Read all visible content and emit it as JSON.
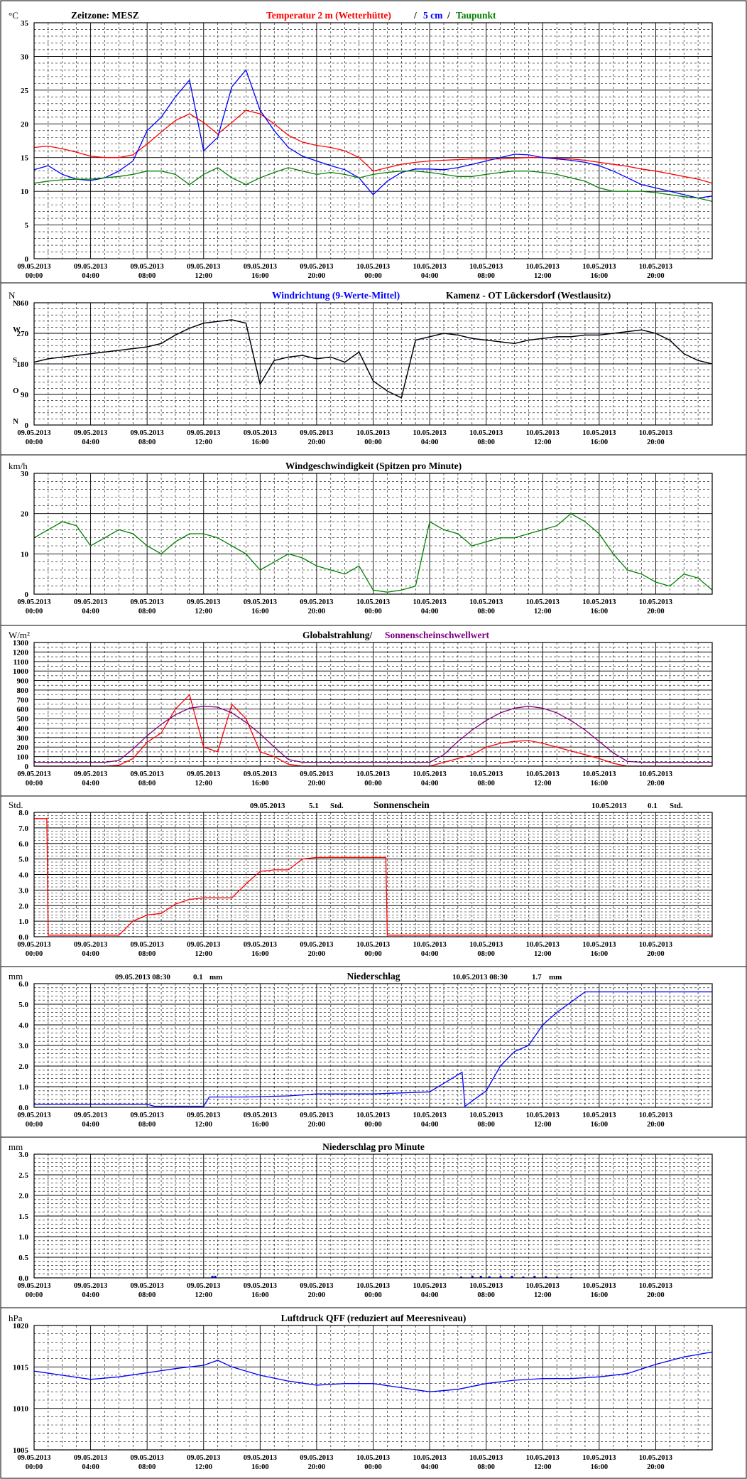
{
  "chart_data": [
    {
      "id": "temperature",
      "type": "line",
      "unit": "°C",
      "title_parts": [
        {
          "text": "Zeitzone: MESZ",
          "color": "#000000"
        },
        {
          "text": "Temperatur 2 m (Wetterhütte)",
          "color": "#ff0000"
        },
        {
          "text": "/",
          "color": "#000000"
        },
        {
          "text": "5 cm",
          "color": "#0000ff"
        },
        {
          "text": "/",
          "color": "#000000"
        },
        {
          "text": "Taupunkt",
          "color": "#008000"
        }
      ],
      "x": [
        0,
        1,
        2,
        3,
        4,
        5,
        6,
        7,
        8,
        9,
        10,
        11,
        12,
        13,
        14,
        15,
        16,
        17,
        18,
        19,
        20,
        21,
        22,
        23,
        24,
        25,
        26,
        27,
        28,
        29,
        30,
        31,
        32,
        33,
        34,
        35,
        36,
        37,
        38,
        39,
        40,
        41,
        42,
        43,
        44,
        45,
        46,
        47,
        48
      ],
      "ylim": [
        0,
        35
      ],
      "yticks": [
        0,
        5,
        10,
        15,
        20,
        25,
        30,
        35
      ],
      "series": [
        {
          "color": "#ff0000",
          "values": [
            16.5,
            16.7,
            16.3,
            15.8,
            15.2,
            15.0,
            15.0,
            15.4,
            17.0,
            18.8,
            20.5,
            21.5,
            20.2,
            18.5,
            20.2,
            22.0,
            21.5,
            20.0,
            18.3,
            17.3,
            16.8,
            16.5,
            16.0,
            15.0,
            13.0,
            13.5,
            14.0,
            14.3,
            14.5,
            14.6,
            14.7,
            14.8,
            14.8,
            14.8,
            14.9,
            15.0,
            15.0,
            14.9,
            14.8,
            14.6,
            14.3,
            14.0,
            13.7,
            13.3,
            13.0,
            12.6,
            12.2,
            11.8,
            11.2
          ]
        },
        {
          "color": "#0000ff",
          "values": [
            13.2,
            13.8,
            12.5,
            11.8,
            11.6,
            12.0,
            13.0,
            14.5,
            19.0,
            21.0,
            24.0,
            26.5,
            16.0,
            18.0,
            25.5,
            28.0,
            22.0,
            19.0,
            16.5,
            15.2,
            14.5,
            13.8,
            13.2,
            12.0,
            9.5,
            11.5,
            12.8,
            13.3,
            13.3,
            13.2,
            13.5,
            14.0,
            14.5,
            15.0,
            15.5,
            15.4,
            15.0,
            14.8,
            14.6,
            14.3,
            13.8,
            13.0,
            12.0,
            11.0,
            10.5,
            10.0,
            9.5,
            9.0,
            9.3
          ]
        },
        {
          "color": "#008000",
          "values": [
            11.2,
            11.5,
            11.7,
            11.8,
            11.8,
            12.0,
            12.2,
            12.5,
            13.0,
            13.0,
            12.5,
            11.0,
            12.5,
            13.5,
            12.0,
            11.0,
            12.0,
            12.8,
            13.5,
            13.0,
            12.5,
            12.8,
            12.5,
            12.0,
            12.5,
            12.8,
            13.0,
            13.0,
            12.8,
            12.5,
            12.2,
            12.2,
            12.5,
            12.8,
            13.0,
            13.0,
            12.8,
            12.5,
            12.0,
            11.5,
            10.5,
            10.0,
            10.0,
            10.0,
            9.8,
            9.5,
            9.2,
            9.0,
            8.5
          ]
        }
      ]
    },
    {
      "id": "winddir",
      "type": "line",
      "unit": "N",
      "title_parts": [
        {
          "text": "Windrichtung (9-Werte-Mittel)",
          "color": "#0000ff"
        },
        {
          "text": "Kamenz - OT Lückersdorf (Westlausitz)",
          "color": "#000000"
        }
      ],
      "y_compass_labels": [
        "N",
        "W",
        "S",
        "O",
        "N"
      ],
      "x": [
        0,
        1,
        2,
        3,
        4,
        5,
        6,
        7,
        8,
        9,
        10,
        11,
        12,
        13,
        14,
        15,
        16,
        17,
        18,
        19,
        20,
        21,
        22,
        23,
        24,
        25,
        26,
        27,
        28,
        29,
        30,
        31,
        32,
        33,
        34,
        35,
        36,
        37,
        38,
        39,
        40,
        41,
        42,
        43,
        44,
        45,
        46,
        47,
        48
      ],
      "ylim": [
        0,
        360
      ],
      "yticks": [
        0,
        90,
        180,
        270,
        360
      ],
      "series": [
        {
          "color": "#3c78ff",
          "values": [
            185,
            195,
            200,
            205,
            210,
            215,
            220,
            225,
            230,
            240,
            265,
            285,
            300,
            305,
            310,
            300,
            120,
            190,
            200,
            205,
            195,
            200,
            185,
            215,
            130,
            100,
            80,
            250,
            260,
            270,
            265,
            255,
            250,
            245,
            240,
            250,
            255,
            260,
            260,
            265,
            265,
            270,
            275,
            280,
            270,
            250,
            210,
            190,
            180
          ]
        },
        {
          "color": "#000000",
          "values": [
            185,
            195,
            200,
            205,
            210,
            215,
            220,
            225,
            230,
            240,
            265,
            285,
            300,
            305,
            310,
            300,
            120,
            190,
            200,
            205,
            195,
            200,
            185,
            215,
            130,
            100,
            80,
            250,
            260,
            270,
            265,
            255,
            250,
            245,
            240,
            250,
            255,
            260,
            260,
            265,
            265,
            270,
            275,
            280,
            270,
            250,
            210,
            190,
            180
          ]
        }
      ]
    },
    {
      "id": "windspeed",
      "type": "line",
      "unit": "km/h",
      "title_parts": [
        {
          "text": "Windgeschwindigkeit (Spitzen pro Minute)",
          "color": "#000000"
        }
      ],
      "x": [
        0,
        1,
        2,
        3,
        4,
        5,
        6,
        7,
        8,
        9,
        10,
        11,
        12,
        13,
        14,
        15,
        16,
        17,
        18,
        19,
        20,
        21,
        22,
        23,
        24,
        25,
        26,
        27,
        28,
        29,
        30,
        31,
        32,
        33,
        34,
        35,
        36,
        37,
        38,
        39,
        40,
        41,
        42,
        43,
        44,
        45,
        46,
        47,
        48
      ],
      "ylim": [
        0,
        30
      ],
      "yticks": [
        0,
        10,
        20,
        30
      ],
      "series": [
        {
          "color": "#008000",
          "values": [
            14,
            16,
            18,
            17,
            12,
            14,
            16,
            15,
            12,
            10,
            13,
            15,
            15,
            14,
            12,
            10,
            6,
            8,
            10,
            9,
            7,
            6,
            5,
            7,
            1,
            0.5,
            1,
            2,
            18,
            16,
            15,
            12,
            13,
            14,
            14,
            15,
            16,
            17,
            20,
            18,
            15,
            10,
            6,
            5,
            3,
            2,
            5,
            4,
            1
          ]
        }
      ]
    },
    {
      "id": "radiation",
      "type": "line",
      "unit": "W/m²",
      "title_parts": [
        {
          "text": "Globalstrahlung/",
          "color": "#000000"
        },
        {
          "text": "Sonnenscheinschwellwert",
          "color": "#800080"
        }
      ],
      "x": [
        0,
        1,
        2,
        3,
        4,
        5,
        6,
        7,
        8,
        9,
        10,
        11,
        12,
        13,
        14,
        15,
        16,
        17,
        18,
        19,
        20,
        21,
        22,
        23,
        24,
        25,
        26,
        27,
        28,
        29,
        30,
        31,
        32,
        33,
        34,
        35,
        36,
        37,
        38,
        39,
        40,
        41,
        42,
        43,
        44,
        45,
        46,
        47,
        48
      ],
      "ylim": [
        0,
        1300
      ],
      "yticks": [
        0,
        100,
        200,
        300,
        400,
        500,
        600,
        700,
        800,
        900,
        1000,
        1100,
        1200,
        1300
      ],
      "series": [
        {
          "color": "#ff0000",
          "values": [
            0,
            0,
            0,
            0,
            0,
            0,
            10,
            80,
            250,
            350,
            600,
            750,
            200,
            150,
            650,
            500,
            150,
            100,
            20,
            0,
            0,
            0,
            0,
            0,
            0,
            0,
            0,
            0,
            0,
            40,
            80,
            120,
            200,
            240,
            260,
            270,
            240,
            200,
            160,
            120,
            80,
            30,
            0,
            0,
            0,
            0,
            0,
            0,
            0
          ]
        },
        {
          "color": "#800080",
          "values": [
            40,
            40,
            40,
            40,
            40,
            40,
            60,
            180,
            320,
            440,
            540,
            610,
            630,
            620,
            560,
            460,
            340,
            200,
            70,
            40,
            40,
            40,
            40,
            40,
            40,
            40,
            40,
            40,
            40,
            120,
            260,
            380,
            480,
            560,
            610,
            630,
            610,
            560,
            480,
            380,
            260,
            140,
            50,
            40,
            40,
            40,
            40,
            40,
            40
          ]
        }
      ]
    },
    {
      "id": "sunshine",
      "type": "line",
      "unit": "Std.",
      "title_parts": [
        {
          "text": "09.05.2013",
          "color": "#000000"
        },
        {
          "text": "5.1",
          "color": "#000000"
        },
        {
          "text": "Std.",
          "color": "#000000"
        },
        {
          "text": "Sonnenschein",
          "color": "#000000"
        },
        {
          "text": "10.05.2013",
          "color": "#000000"
        },
        {
          "text": "0.1",
          "color": "#000000"
        },
        {
          "text": "Std.",
          "color": "#000000"
        }
      ],
      "x": [
        0,
        0.9,
        1,
        6,
        7,
        8,
        9,
        10,
        11,
        12,
        13,
        14,
        15,
        16,
        17,
        18,
        19,
        20,
        21,
        22,
        23,
        24.9,
        25,
        26,
        27,
        28,
        29,
        30,
        31,
        32,
        33,
        34,
        35,
        36,
        37,
        38,
        39,
        40,
        41,
        42,
        43,
        44,
        45,
        46,
        47,
        48
      ],
      "ylim": [
        0,
        8
      ],
      "yticks": [
        0,
        1,
        2,
        3,
        4,
        5,
        6,
        7,
        8
      ],
      "series": [
        {
          "color": "#ff0000",
          "values": [
            7.6,
            7.6,
            0.1,
            0.1,
            1.0,
            1.4,
            1.5,
            2.1,
            2.4,
            2.5,
            2.5,
            2.5,
            3.4,
            4.2,
            4.3,
            4.3,
            5.0,
            5.1,
            5.1,
            5.1,
            5.1,
            5.1,
            0.1,
            0.1,
            0.1,
            0.1,
            0.1,
            0.1,
            0.1,
            0.1,
            0.1,
            0.1,
            0.1,
            0.1,
            0.1,
            0.1,
            0.1,
            0.1,
            0.1,
            0.1,
            0.1,
            0.1,
            0.1,
            0.1,
            0.1,
            0.1
          ]
        }
      ]
    },
    {
      "id": "precip",
      "type": "line",
      "unit": "mm",
      "title_parts": [
        {
          "text": "09.05.2013 08:30",
          "color": "#000000"
        },
        {
          "text": "0.1",
          "color": "#000000"
        },
        {
          "text": "mm",
          "color": "#000000"
        },
        {
          "text": "Niederschlag",
          "color": "#000000"
        },
        {
          "text": "10.05.2013 08:30",
          "color": "#000000"
        },
        {
          "text": "1.7",
          "color": "#000000"
        },
        {
          "text": "mm",
          "color": "#000000"
        }
      ],
      "x": [
        0,
        8,
        8.5,
        12,
        12.4,
        15,
        18,
        20,
        24,
        28,
        30.3,
        30.5,
        32,
        33,
        34,
        35,
        36,
        37,
        38,
        39,
        40,
        44,
        48
      ],
      "ylim": [
        0,
        6
      ],
      "yticks": [
        0,
        1,
        2,
        3,
        4,
        5,
        6
      ],
      "series": [
        {
          "color": "#0000ff",
          "values": [
            0.15,
            0.15,
            0.05,
            0.05,
            0.5,
            0.5,
            0.55,
            0.65,
            0.65,
            0.75,
            1.7,
            0.05,
            0.8,
            2.0,
            2.7,
            3.0,
            4.0,
            4.6,
            5.1,
            5.6,
            5.6,
            5.6,
            5.6
          ]
        }
      ]
    },
    {
      "id": "precip_min",
      "type": "bar",
      "unit": "mm",
      "title_parts": [
        {
          "text": "Niederschlag pro Minute",
          "color": "#000000"
        }
      ],
      "x": [
        12.6,
        12.8,
        30.2,
        31.0,
        31.6,
        32.2,
        33.0,
        33.8,
        34.6,
        35.4,
        36.2,
        37.0,
        38.0
      ],
      "ylim": [
        0,
        3
      ],
      "yticks": [
        0,
        0.5,
        1,
        1.5,
        2,
        2.5,
        3
      ],
      "series": [
        {
          "color": "#0000ff",
          "values": [
            0.05,
            0.05,
            0.03,
            0.05,
            0.05,
            0.04,
            0.05,
            0.05,
            0.03,
            0.05,
            0.04,
            0.03,
            0.02
          ]
        }
      ]
    },
    {
      "id": "pressure",
      "type": "line",
      "unit": "hPa",
      "title_parts": [
        {
          "text": "Luftdruck QFF (reduziert auf Meeresniveau)",
          "color": "#000000"
        }
      ],
      "x": [
        0,
        2,
        4,
        6,
        8,
        10,
        11,
        12,
        13,
        14,
        16,
        18,
        20,
        22,
        24,
        26,
        28,
        30,
        32,
        34,
        36,
        38,
        40,
        42,
        44,
        46,
        48
      ],
      "ylim": [
        1005,
        1020
      ],
      "yticks": [
        1005,
        1010,
        1015,
        1020
      ],
      "series": [
        {
          "color": "#0000ff",
          "values": [
            1014.5,
            1014.0,
            1013.5,
            1013.8,
            1014.3,
            1014.8,
            1015.0,
            1015.2,
            1015.8,
            1015.0,
            1014.0,
            1013.3,
            1012.8,
            1013.0,
            1013.0,
            1012.5,
            1012.0,
            1012.3,
            1013.0,
            1013.4,
            1013.6,
            1013.6,
            1013.8,
            1014.2,
            1015.3,
            1016.2,
            1016.8
          ]
        }
      ]
    }
  ],
  "x_tick_labels": [
    {
      "date": "09.05.2013",
      "time": "00:00"
    },
    {
      "date": "09.05.2013",
      "time": "04:00"
    },
    {
      "date": "09.05.2013",
      "time": "08:00"
    },
    {
      "date": "09.05.2013",
      "time": "12:00"
    },
    {
      "date": "09.05.2013",
      "time": "16:00"
    },
    {
      "date": "09.05.2013",
      "time": "20:00"
    },
    {
      "date": "10.05.2013",
      "time": "00:00"
    },
    {
      "date": "10.05.2013",
      "time": "04:00"
    },
    {
      "date": "10.05.2013",
      "time": "08:00"
    },
    {
      "date": "10.05.2013",
      "time": "12:00"
    },
    {
      "date": "10.05.2013",
      "time": "16:00"
    },
    {
      "date": "10.05.2013",
      "time": "20:00"
    }
  ]
}
